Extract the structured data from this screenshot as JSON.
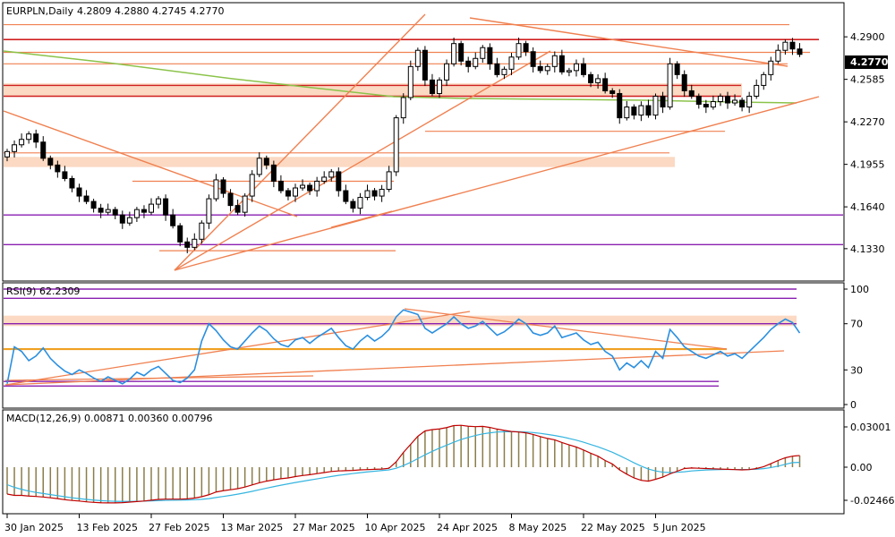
{
  "header": {
    "symbol": "EURPLN,Daily",
    "ohlc": "4.2809 4.2880 4.2745 4.2770"
  },
  "price_axis": {
    "ticks": [
      "4.2900",
      "4.2585",
      "4.2270",
      "4.1955",
      "4.1640",
      "4.1330"
    ],
    "current_price": "4.2770"
  },
  "rsi": {
    "label": "RSI(9) 62.2309",
    "ticks": [
      "100",
      "70",
      "30",
      "0"
    ]
  },
  "macd": {
    "label": "MACD(12,26,9) 0.00871 0.00360 0.00796",
    "ticks": [
      "0.03001",
      "0.00",
      "-0.02466"
    ]
  },
  "date_axis": {
    "labels": [
      "30 Jan 2025",
      "13 Feb 2025",
      "27 Feb 2025",
      "13 Mar 2025",
      "27 Mar 2025",
      "10 Apr 2025",
      "24 Apr 2025",
      "8 May 2025",
      "22 May 2025",
      "5 Jun 2025"
    ]
  },
  "colors": {
    "candle": "#000000",
    "trendline": "#f08050",
    "resistance": "#d02020",
    "support_band": "#fbd9c2",
    "ma": "#8bc34a",
    "purple": "#8a1fb0",
    "rsi_line": "#2a8fe0",
    "macd_line": "#c00000",
    "signal_line": "#35b5e0",
    "histogram": "#8b7d4a"
  },
  "chart_data": [
    {
      "type": "candlestick",
      "title": "EURPLN,Daily",
      "ylim": [
        4.115,
        4.31
      ],
      "y_ticks": [
        4.29,
        4.2585,
        4.227,
        4.1955,
        4.164,
        4.133
      ],
      "x_tick_labels": [
        "30 Jan 2025",
        "13 Feb 2025",
        "27 Feb 2025",
        "13 Mar 2025",
        "27 Mar 2025",
        "10 Apr 2025",
        "24 Apr 2025",
        "8 May 2025",
        "22 May 2025",
        "5 Jun 2025"
      ],
      "closes": [
        4.205,
        4.21,
        4.214,
        4.218,
        4.212,
        4.2,
        4.195,
        4.19,
        4.185,
        4.178,
        4.172,
        4.168,
        4.163,
        4.16,
        4.162,
        4.158,
        4.152,
        4.156,
        4.162,
        4.16,
        4.166,
        4.17,
        4.158,
        4.15,
        4.138,
        4.134,
        4.14,
        4.152,
        4.17,
        4.184,
        4.174,
        4.165,
        4.16,
        4.172,
        4.188,
        4.2,
        4.195,
        4.183,
        4.176,
        4.172,
        4.178,
        4.18,
        4.176,
        4.183,
        4.186,
        4.19,
        4.176,
        4.168,
        4.163,
        4.171,
        4.176,
        4.172,
        4.177,
        4.19,
        4.23,
        4.245,
        4.268,
        4.28,
        4.258,
        4.248,
        4.258,
        4.27,
        4.285,
        4.272,
        4.268,
        4.274,
        4.282,
        4.27,
        4.262,
        4.266,
        4.275,
        4.285,
        4.279,
        4.268,
        4.265,
        4.268,
        4.276,
        4.264,
        4.265,
        4.27,
        4.262,
        4.256,
        4.259,
        4.25,
        4.248,
        4.23,
        4.238,
        4.232,
        4.239,
        4.232,
        4.246,
        4.238,
        4.27,
        4.262,
        4.25,
        4.246,
        4.24,
        4.238,
        4.242,
        4.246,
        4.241,
        4.243,
        4.238,
        4.246,
        4.254,
        4.262,
        4.272,
        4.28,
        4.286,
        4.281,
        4.277
      ],
      "horizontal_levels": [
        4.288,
        4.2785,
        4.27,
        4.254,
        4.246,
        4.22,
        4.204,
        4.199,
        4.158,
        4.136
      ]
    },
    {
      "type": "line",
      "title": "RSI(9) 62.2309",
      "ylim": [
        0,
        100
      ],
      "y_ticks": [
        100,
        70,
        30,
        0
      ],
      "levels": [
        100,
        92,
        70,
        48,
        20,
        16
      ],
      "values": [
        18,
        50,
        46,
        38,
        42,
        49,
        40,
        34,
        29,
        26,
        30,
        27,
        23,
        20,
        24,
        21,
        18,
        22,
        28,
        25,
        30,
        33,
        27,
        21,
        19,
        23,
        30,
        55,
        70,
        64,
        56,
        50,
        48,
        55,
        62,
        68,
        64,
        57,
        52,
        50,
        56,
        58,
        53,
        58,
        62,
        66,
        58,
        51,
        48,
        55,
        60,
        55,
        59,
        65,
        76,
        82,
        80,
        78,
        66,
        62,
        66,
        70,
        76,
        70,
        66,
        68,
        72,
        66,
        60,
        63,
        68,
        74,
        70,
        62,
        60,
        62,
        68,
        58,
        60,
        62,
        56,
        52,
        54,
        46,
        42,
        30,
        36,
        32,
        38,
        32,
        46,
        40,
        65,
        58,
        50,
        46,
        42,
        40,
        43,
        46,
        42,
        44,
        40,
        46,
        52,
        58,
        65,
        70,
        74,
        71,
        62
      ]
    },
    {
      "type": "line",
      "title": "MACD(12,26,9) 0.00871 0.00360 0.00796",
      "ylim": [
        -0.032,
        0.04
      ],
      "y_ticks": [
        0.03001,
        0.0,
        -0.02466
      ],
      "macd": [
        -0.02,
        -0.021,
        -0.021,
        -0.0215,
        -0.0218,
        -0.0222,
        -0.0228,
        -0.0234,
        -0.0242,
        -0.0248,
        -0.0252,
        -0.0258,
        -0.0262,
        -0.0265,
        -0.0266,
        -0.0266,
        -0.0264,
        -0.026,
        -0.0256,
        -0.0252,
        -0.0246,
        -0.024,
        -0.0238,
        -0.0238,
        -0.0238,
        -0.0236,
        -0.023,
        -0.022,
        -0.0205,
        -0.0185,
        -0.0175,
        -0.0168,
        -0.016,
        -0.0148,
        -0.0132,
        -0.0116,
        -0.0104,
        -0.0094,
        -0.0086,
        -0.008,
        -0.007,
        -0.0062,
        -0.0056,
        -0.0048,
        -0.004,
        -0.0032,
        -0.0028,
        -0.0026,
        -0.0024,
        -0.002,
        -0.0018,
        -0.0016,
        -0.0014,
        -0.0008,
        0.004,
        0.011,
        0.017,
        0.023,
        0.027,
        0.028,
        0.0285,
        0.0295,
        0.031,
        0.0312,
        0.0305,
        0.0302,
        0.0304,
        0.0296,
        0.0284,
        0.0274,
        0.0266,
        0.0262,
        0.0256,
        0.0244,
        0.0228,
        0.0214,
        0.0204,
        0.0184,
        0.0166,
        0.015,
        0.0128,
        0.0104,
        0.0082,
        0.005,
        0.0024,
        -0.002,
        -0.0052,
        -0.008,
        -0.0098,
        -0.0104,
        -0.009,
        -0.0074,
        -0.005,
        -0.003,
        -0.001,
        -0.0006,
        -0.0008,
        -0.001,
        -0.0012,
        -0.0014,
        -0.0016,
        -0.0018,
        -0.002,
        -0.0018,
        -0.001,
        0.0004,
        0.0026,
        0.005,
        0.007,
        0.0082,
        0.0087
      ],
      "signal": [
        -0.013,
        -0.015,
        -0.0165,
        -0.0178,
        -0.0188,
        -0.0196,
        -0.0204,
        -0.0212,
        -0.022,
        -0.0228,
        -0.0234,
        -0.024,
        -0.0245,
        -0.0249,
        -0.0252,
        -0.0254,
        -0.0255,
        -0.0255,
        -0.0254,
        -0.0253,
        -0.0251,
        -0.0249,
        -0.0247,
        -0.0246,
        -0.0245,
        -0.0244,
        -0.0242,
        -0.0239,
        -0.0234,
        -0.0226,
        -0.0218,
        -0.021,
        -0.0201,
        -0.0191,
        -0.018,
        -0.0168,
        -0.0156,
        -0.0145,
        -0.0134,
        -0.0124,
        -0.0114,
        -0.0105,
        -0.0096,
        -0.0087,
        -0.0078,
        -0.0069,
        -0.0061,
        -0.0054,
        -0.0047,
        -0.0041,
        -0.0035,
        -0.003,
        -0.0025,
        -0.002,
        -0.0008,
        0.0012,
        0.0036,
        0.0064,
        0.0092,
        0.0118,
        0.0142,
        0.0164,
        0.0186,
        0.0206,
        0.0222,
        0.0236,
        0.0248,
        0.0256,
        0.0262,
        0.0264,
        0.0265,
        0.0264,
        0.0262,
        0.0258,
        0.0252,
        0.0244,
        0.0236,
        0.0226,
        0.0214,
        0.0201,
        0.0186,
        0.0169,
        0.0152,
        0.0132,
        0.0111,
        0.0086,
        0.006,
        0.0033,
        0.0008,
        -0.0014,
        -0.0028,
        -0.0037,
        -0.004,
        -0.0038,
        -0.0034,
        -0.0028,
        -0.0024,
        -0.0021,
        -0.0019,
        -0.0018,
        -0.0017,
        -0.0017,
        -0.0017,
        -0.0017,
        -0.0015,
        -0.0011,
        -0.0003,
        0.0008,
        0.0021,
        0.0034,
        0.0036
      ]
    }
  ]
}
